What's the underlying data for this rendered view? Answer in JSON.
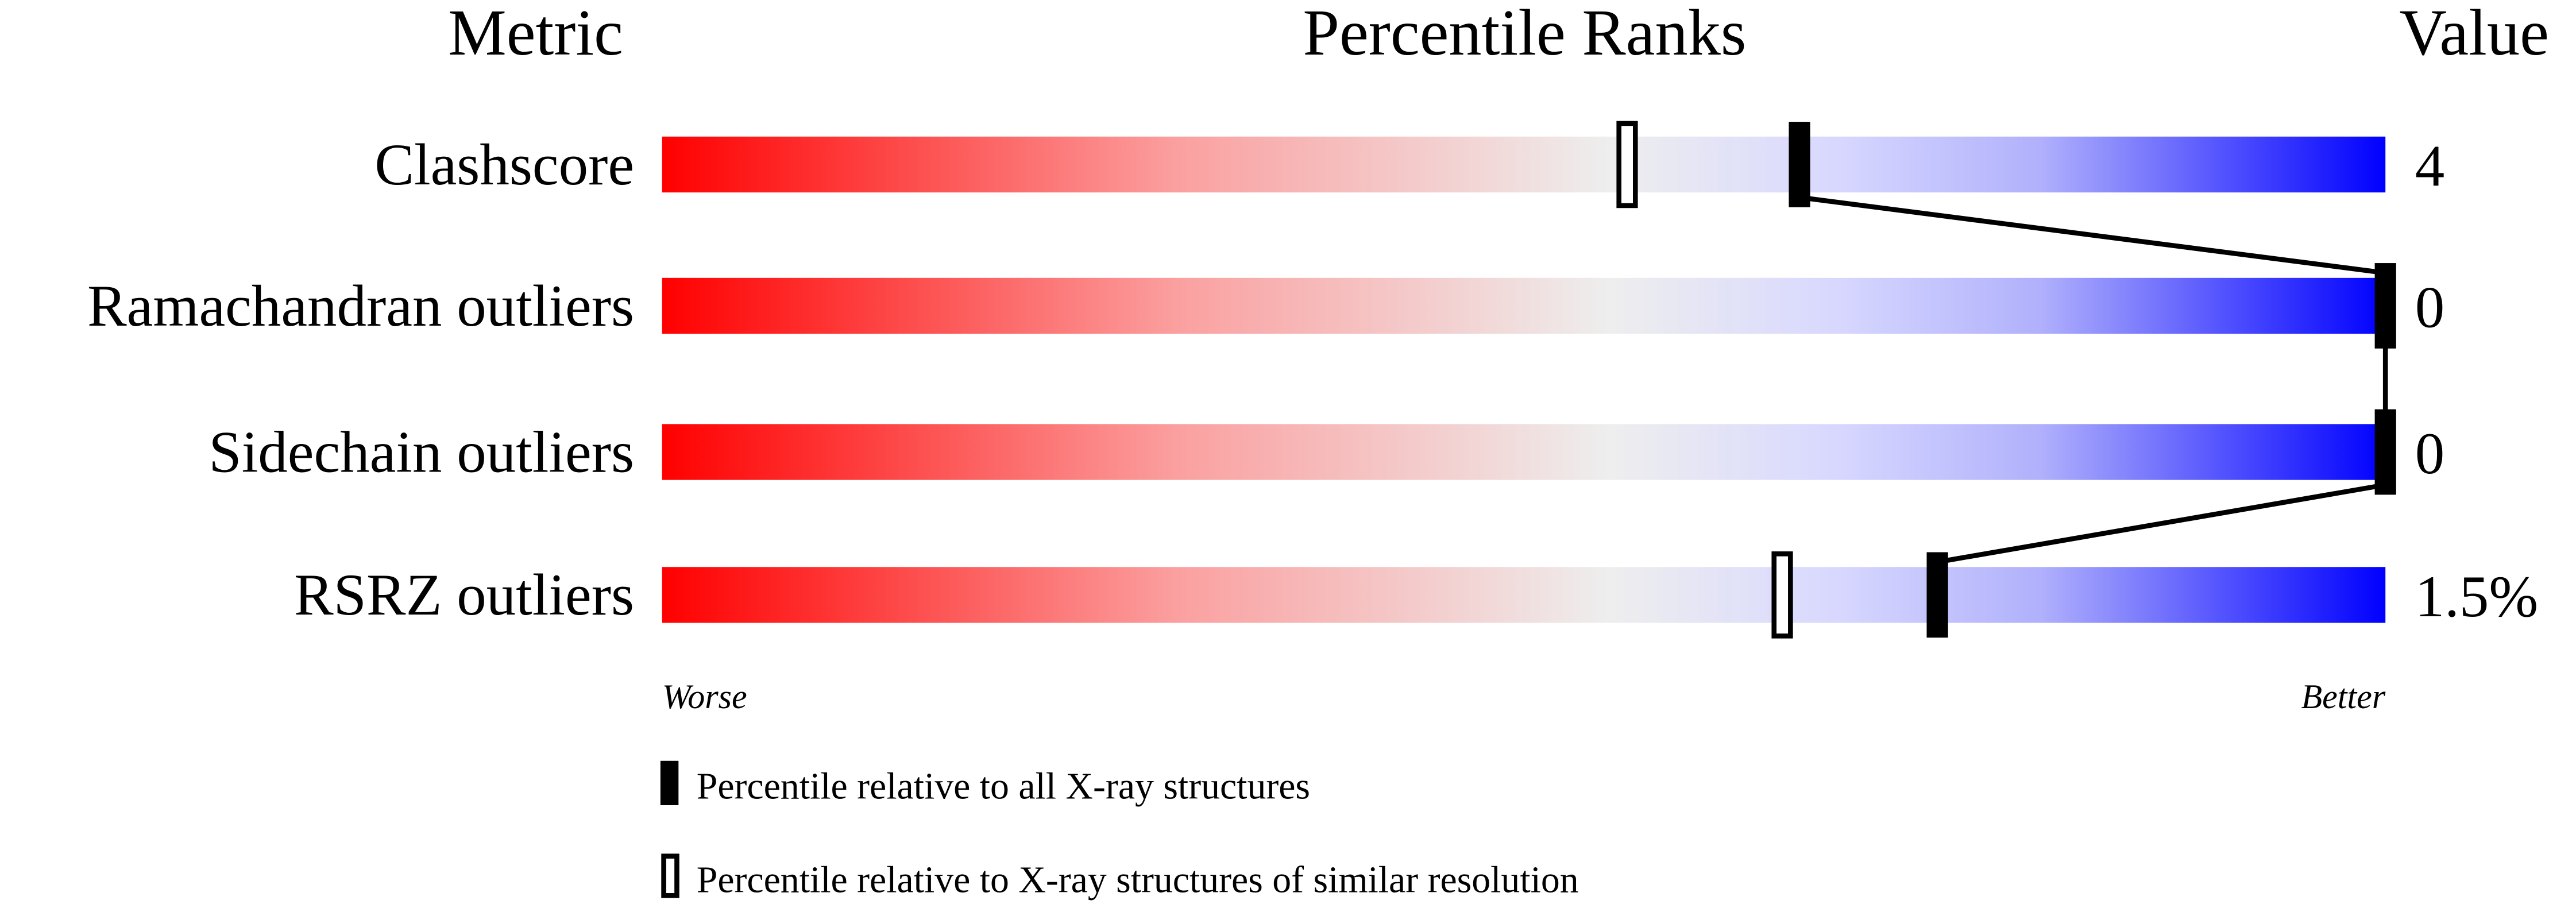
{
  "chart_data": {
    "type": "percentile-ranks",
    "headers": {
      "metric": "Metric",
      "ranks": "Percentile Ranks",
      "value": "Value"
    },
    "xlim": [
      0,
      100
    ],
    "axis_labels": {
      "left": "Worse",
      "right": "Better"
    },
    "gradient_colors": [
      "#ff0000",
      "#eeeeee",
      "#d8d8ff",
      "#0000ff"
    ],
    "metrics": [
      {
        "name": "Clashscore",
        "value": "4",
        "percentile_all": 66,
        "percentile_similar": 56
      },
      {
        "name": "Ramachandran outliers",
        "value": "0",
        "percentile_all": 100,
        "percentile_similar": 100
      },
      {
        "name": "Sidechain outliers",
        "value": "0",
        "percentile_all": 100,
        "percentile_similar": 100
      },
      {
        "name": "RSRZ outliers",
        "value": "1.5%",
        "percentile_all": 74,
        "percentile_similar": 65
      }
    ],
    "legend": [
      {
        "marker": "filled",
        "label": "Percentile relative to all X-ray structures"
      },
      {
        "marker": "hollow",
        "label": "Percentile relative to X-ray structures of similar resolution"
      }
    ]
  }
}
